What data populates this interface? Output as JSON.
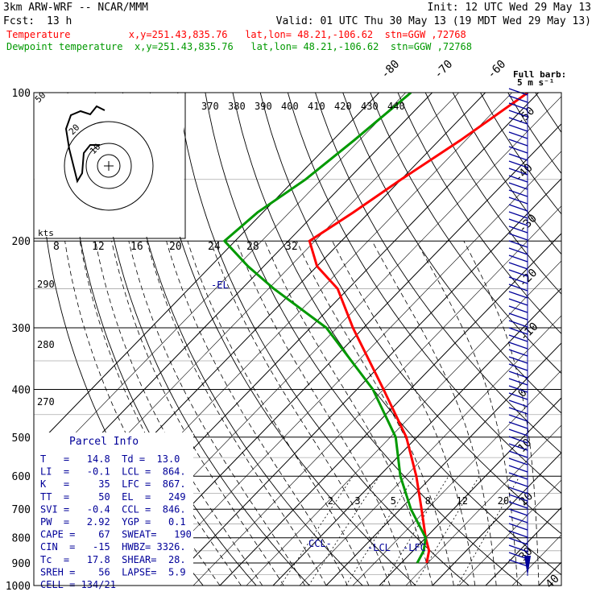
{
  "header": {
    "title": "3km ARW-WRF -- NCAR/MMM",
    "init": "Init: 12 UTC Wed 29 May 13",
    "fcst_label": "Fcst:",
    "fcst_value": "13 h",
    "valid": "Valid: 01 UTC Thu 30 May 13 (19 MDT Wed 29 May 13)",
    "line_temp": "Temperature          x,y=251.43,835.76   lat,lon= 48.21,-106.62  stn=GGW ,72768",
    "line_dew": "Dewpoint temperature  x,y=251.43,835.76   lat,lon= 48.21,-106.62  stn=GGW ,72768"
  },
  "colors": {
    "temperature": "#ff0000",
    "dewpoint": "#009900",
    "wind": "#000099",
    "parcel": "#000099"
  },
  "chart_data": {
    "type": "line",
    "title": "",
    "xlabel": "",
    "ylabel": "",
    "pressure_levels": [
      "100",
      "200",
      "300",
      "400",
      "500",
      "600",
      "700",
      "800",
      "900",
      "1000"
    ],
    "isotherm_labels": [
      "-80",
      "-70",
      "-60",
      "-50",
      "-40",
      "-30",
      "-20",
      "-10",
      "0",
      "10",
      "20",
      "30",
      "40"
    ],
    "theta_labels": [
      "370",
      "380",
      "390",
      "400",
      "410",
      "420",
      "430",
      "440"
    ],
    "dry_adiabat_labels": [
      "290",
      "280",
      "270"
    ],
    "mixing_ratio_labels": [
      "2",
      "3",
      "5",
      "8",
      "12",
      "20"
    ],
    "hodo_labels": [
      "8",
      "12",
      "16",
      "20",
      "24",
      "28",
      "32"
    ],
    "hodo_unit": "kts",
    "hodo_ring_labels": [
      "50",
      "20",
      "10"
    ],
    "annotations": [
      "-EL",
      "CCL-",
      "-LCL",
      "-LFC"
    ],
    "wind_scale": "Full barb: 5 m s⁻¹",
    "series": [
      {
        "name": "Temperature",
        "points": [
          [
            100,
            -52
          ],
          [
            125,
            -56
          ],
          [
            150,
            -60
          ],
          [
            175,
            -63
          ],
          [
            200,
            -66
          ],
          [
            225,
            -60
          ],
          [
            250,
            -52
          ],
          [
            300,
            -42
          ],
          [
            400,
            -25
          ],
          [
            500,
            -12
          ],
          [
            600,
            -3
          ],
          [
            700,
            4
          ],
          [
            800,
            10
          ],
          [
            850,
            13
          ],
          [
            900,
            14.8
          ]
        ]
      },
      {
        "name": "Dewpoint temperature",
        "points": [
          [
            100,
            -74
          ],
          [
            125,
            -76
          ],
          [
            150,
            -78
          ],
          [
            175,
            -81
          ],
          [
            200,
            -82
          ],
          [
            225,
            -73
          ],
          [
            250,
            -64
          ],
          [
            300,
            -47
          ],
          [
            400,
            -27
          ],
          [
            500,
            -14
          ],
          [
            600,
            -6
          ],
          [
            700,
            2
          ],
          [
            800,
            10
          ],
          [
            850,
            12
          ],
          [
            900,
            13
          ]
        ]
      }
    ],
    "parcel_info": {
      "title": "Parcel Info",
      "rows": [
        "T   =   14.8  Td =  13.0",
        "LI  =   -0.1  LCL =  864.",
        "K   =     35  LFC =  867.",
        "TT  =     50  EL  =   249",
        "SVI =   -0.4  CCL =  846.",
        "PW  =   2.92  YGP =   0.1",
        "CAPE =    67  SWEAT=   190",
        "CIN  =   -15  HWBZ= 3326.",
        "Tc  =   17.8  SHEAR=  28.",
        "SREH =    56  LAPSE=  5.9",
        "CELL = 134/21"
      ]
    },
    "grid": true
  }
}
